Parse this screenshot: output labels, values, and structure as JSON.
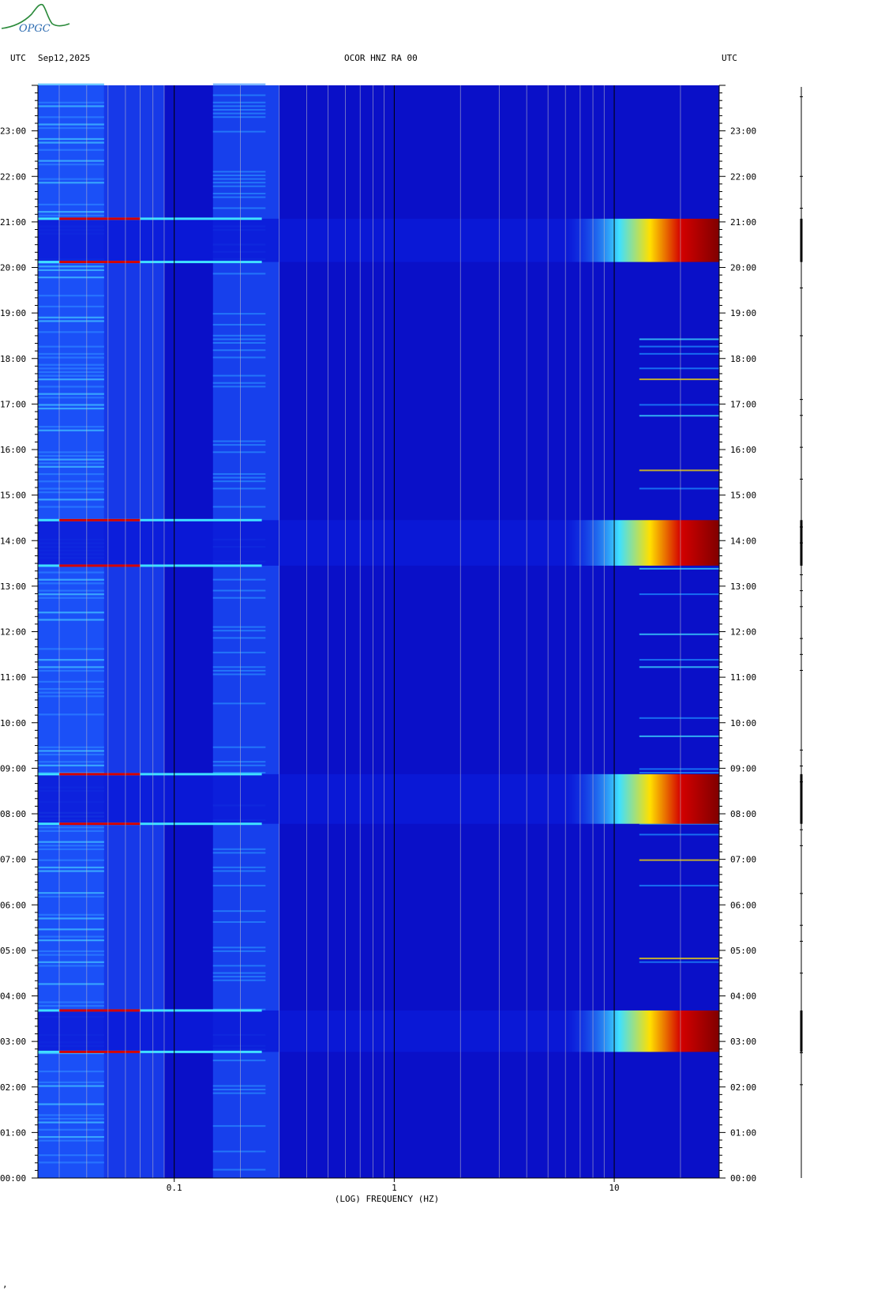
{
  "logo": {
    "text": "OPGC"
  },
  "header": {
    "left_tz": "UTC",
    "date": "Sep12,2025",
    "station": "OCOR HNZ RA 00",
    "right_tz": "UTC"
  },
  "footer": {
    "mark": "‚"
  },
  "colors": {
    "background": "#0a10c8",
    "low_energy": "#0a1ab8",
    "mid": "#1e8cff",
    "cyan": "#3fe0ff",
    "yellow": "#ffe000",
    "red": "#d40000",
    "dark_red": "#800000"
  },
  "chart_data": {
    "type": "heatmap",
    "title": "OCOR HNZ RA 00",
    "xlabel": "(LOG) FREQUENCY (HZ)",
    "x_scale": "log",
    "xlim": [
      0.024,
      30
    ],
    "x_ticks": [
      {
        "value": 0.1,
        "label": "0.1"
      },
      {
        "value": 1,
        "label": "1"
      },
      {
        "value": 10,
        "label": "10"
      }
    ],
    "ylim": [
      0,
      24
    ],
    "y_ticks": [
      {
        "value": 0,
        "label": "00:00"
      },
      {
        "value": 1,
        "label": "01:00"
      },
      {
        "value": 2,
        "label": "02:00"
      },
      {
        "value": 3,
        "label": "03:00"
      },
      {
        "value": 4,
        "label": "04:00"
      },
      {
        "value": 5,
        "label": "05:00"
      },
      {
        "value": 6,
        "label": "06:00"
      },
      {
        "value": 7,
        "label": "07:00"
      },
      {
        "value": 8,
        "label": "08:00"
      },
      {
        "value": 9,
        "label": "09:00"
      },
      {
        "value": 10,
        "label": "10:00"
      },
      {
        "value": 11,
        "label": "11:00"
      },
      {
        "value": 12,
        "label": "12:00"
      },
      {
        "value": 13,
        "label": "13:00"
      },
      {
        "value": 14,
        "label": "14:00"
      },
      {
        "value": 15,
        "label": "15:00"
      },
      {
        "value": 16,
        "label": "16:00"
      },
      {
        "value": 17,
        "label": "17:00"
      },
      {
        "value": 18,
        "label": "18:00"
      },
      {
        "value": 19,
        "label": "19:00"
      },
      {
        "value": 20,
        "label": "20:00"
      },
      {
        "value": 21,
        "label": "21:00"
      },
      {
        "value": 22,
        "label": "22:00"
      },
      {
        "value": 23,
        "label": "23:00"
      }
    ],
    "gridlines_hz": [
      0.03,
      0.04,
      0.05,
      0.06,
      0.07,
      0.08,
      0.09,
      0.2,
      0.3,
      0.4,
      0.5,
      0.6,
      0.7,
      0.8,
      0.9,
      2,
      3,
      4,
      5,
      6,
      7,
      8,
      9,
      20
    ],
    "major_lines_hz": [
      0.1,
      1,
      10
    ],
    "high_energy_periods": [
      {
        "start": 2.77,
        "end": 3.68
      },
      {
        "start": 7.78,
        "end": 8.87
      },
      {
        "start": 13.45,
        "end": 14.45
      },
      {
        "start": 20.12,
        "end": 21.07
      }
    ],
    "grid": true,
    "legend": "none"
  }
}
